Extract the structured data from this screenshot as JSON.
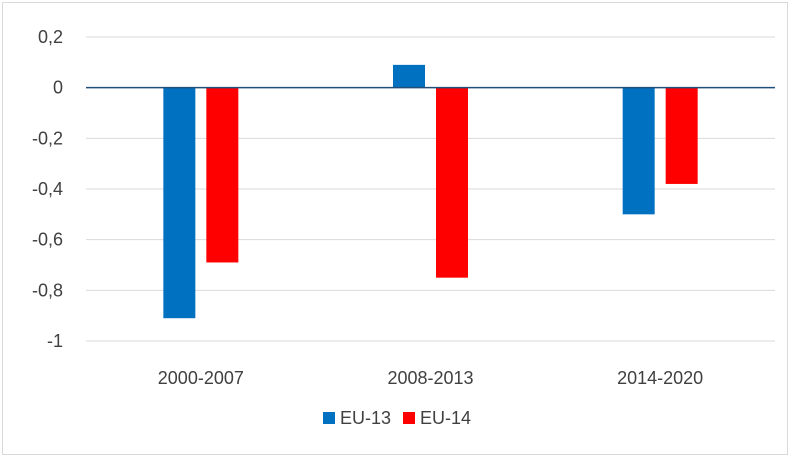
{
  "chart_data": {
    "type": "bar",
    "title": "",
    "xlabel": "",
    "ylabel": "",
    "categories": [
      "2000-2007",
      "2008-2013",
      "2014-2020"
    ],
    "series": [
      {
        "name": "EU-13",
        "color": "#0070C0",
        "values": [
          -0.91,
          0.09,
          -0.5
        ]
      },
      {
        "name": "EU-14",
        "color": "#FF0000",
        "values": [
          -0.69,
          -0.75,
          -0.38
        ]
      }
    ],
    "ylim": [
      -1,
      0.2
    ],
    "yticks": [
      0.2,
      0,
      -0.2,
      -0.4,
      -0.6,
      -0.8,
      -1
    ],
    "ytick_labels": [
      "0,2",
      "0",
      "-0,2",
      "-0,4",
      "-0,6",
      "-0,8",
      "-1"
    ],
    "grid": true,
    "legend_position": "bottom"
  }
}
